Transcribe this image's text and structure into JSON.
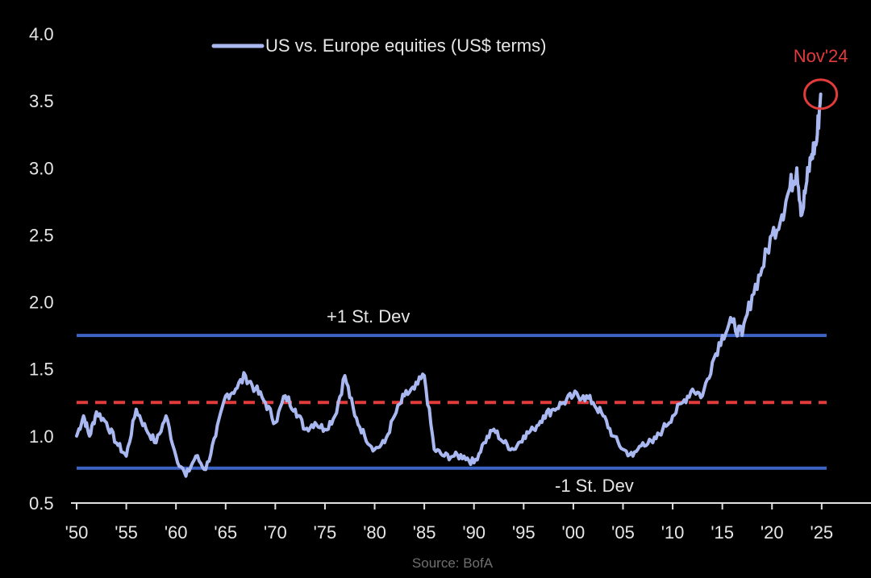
{
  "source": "Source: BofA",
  "colors": {
    "series": "#a9b8f0",
    "band": "#3d63c4",
    "mean": "#e23b3b",
    "highlight": "#e23b3b",
    "background": "#000000"
  },
  "chart_data": {
    "type": "line",
    "title": "",
    "xlabel": "",
    "ylabel": "",
    "xlim": [
      1950,
      2025.5
    ],
    "ylim": [
      0.5,
      4.0
    ],
    "grid": false,
    "legend_position": "top-left",
    "x_ticks": [
      1950,
      1955,
      1960,
      1965,
      1970,
      1975,
      1980,
      1985,
      1990,
      1995,
      2000,
      2005,
      2010,
      2015,
      2020,
      2025
    ],
    "x_tick_labels": [
      "'50",
      "'55",
      "'60",
      "'65",
      "'70",
      "'75",
      "'80",
      "'85",
      "'90",
      "'95",
      "'00",
      "'05",
      "'10",
      "'15",
      "'20",
      "'25"
    ],
    "y_ticks": [
      0.5,
      1.0,
      1.5,
      2.0,
      2.5,
      3.0,
      3.5,
      4.0
    ],
    "y_tick_labels": [
      "0.5",
      "1.0",
      "1.5",
      "2.0",
      "2.5",
      "3.0",
      "3.5",
      "4.0"
    ],
    "series": [
      {
        "name": "US vs. Europe equities (US$ terms)",
        "x": [
          1950,
          1950.7,
          1951.3,
          1952,
          1953,
          1954,
          1955,
          1956,
          1957,
          1958,
          1959,
          1960,
          1961,
          1962,
          1963,
          1964,
          1965,
          1966,
          1967,
          1968,
          1969,
          1970,
          1971,
          1972,
          1973,
          1974,
          1975,
          1976,
          1977,
          1978,
          1979,
          1980,
          1981,
          1982,
          1983,
          1984,
          1985,
          1986,
          1987,
          1988,
          1989,
          1990,
          1991,
          1992,
          1993,
          1994,
          1995,
          1996,
          1997,
          1998,
          1999,
          2000,
          2001,
          2002,
          2003,
          2004,
          2005,
          2006,
          2007,
          2008,
          2009,
          2010,
          2011,
          2012,
          2013,
          2014,
          2015,
          2016,
          2017,
          2018,
          2019,
          2020,
          2021,
          2021.8,
          2022.5,
          2023,
          2023.5,
          2024,
          2024.5,
          2024.9
        ],
        "y": [
          1.0,
          1.15,
          1.0,
          1.18,
          1.1,
          0.95,
          0.85,
          1.2,
          1.05,
          0.95,
          1.15,
          0.85,
          0.7,
          0.85,
          0.75,
          1.0,
          1.3,
          1.35,
          1.45,
          1.35,
          1.25,
          1.1,
          1.3,
          1.2,
          1.05,
          1.1,
          1.05,
          1.15,
          1.45,
          1.15,
          1.0,
          0.9,
          0.95,
          1.15,
          1.3,
          1.35,
          1.45,
          0.9,
          0.85,
          0.85,
          0.85,
          0.8,
          0.95,
          1.05,
          0.95,
          0.9,
          1.0,
          1.05,
          1.15,
          1.2,
          1.25,
          1.3,
          1.3,
          1.25,
          1.15,
          1.0,
          0.9,
          0.85,
          0.95,
          0.95,
          1.05,
          1.15,
          1.25,
          1.35,
          1.3,
          1.55,
          1.75,
          1.85,
          1.75,
          2.05,
          2.25,
          2.5,
          2.65,
          2.85,
          3.0,
          2.65,
          2.9,
          3.1,
          3.2,
          3.55
        ]
      }
    ],
    "reference_lines": [
      {
        "label": "+1 St. Dev",
        "y": 1.75
      },
      {
        "label": "",
        "y": 1.25
      },
      {
        "label": "-1 St. Dev",
        "y": 0.76
      }
    ],
    "annotations": [
      {
        "label": "Nov'24",
        "x": 2024.9,
        "y": 3.55
      }
    ]
  }
}
